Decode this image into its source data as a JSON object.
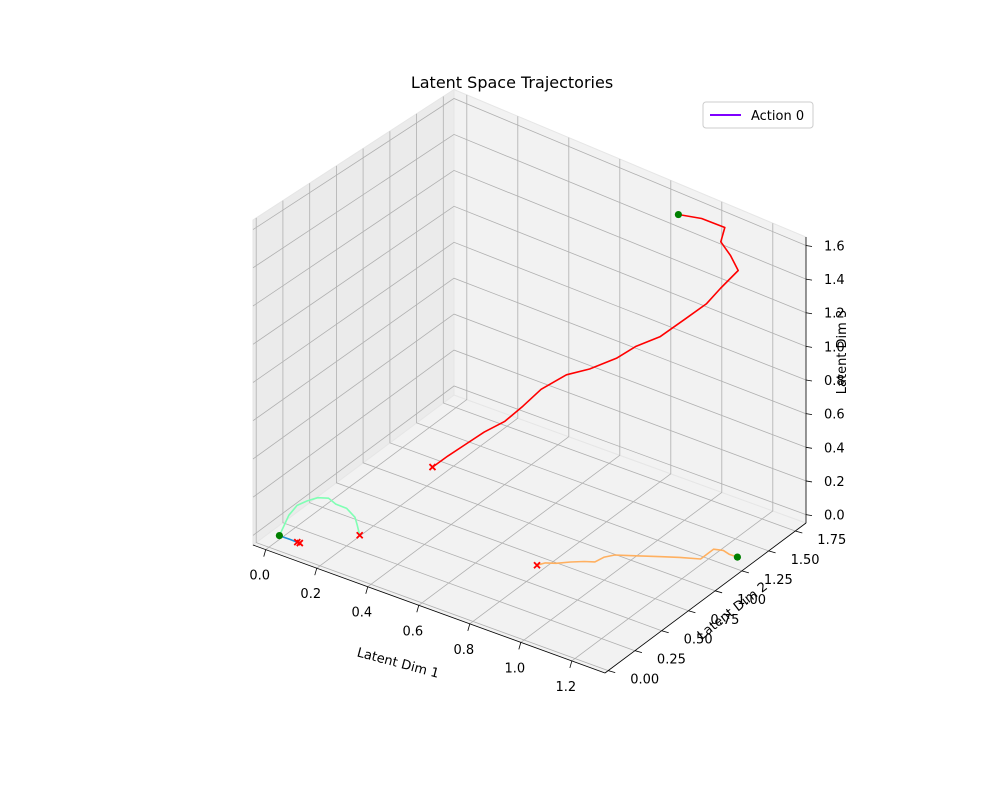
{
  "chart_data": {
    "type": "line",
    "projection": "3d",
    "title": "Latent Space Trajectories",
    "xlabel": "Latent Dim 1",
    "ylabel": "Latent Dim 2",
    "zlabel": "Latent Dim 3",
    "xlim": [
      -0.05,
      1.33
    ],
    "ylim": [
      -0.03,
      1.85
    ],
    "zlim": [
      -0.05,
      1.65
    ],
    "xticks": [
      "0.0",
      "0.2",
      "0.4",
      "0.6",
      "0.8",
      "1.0",
      "1.2"
    ],
    "yticks": [
      "0.00",
      "0.25",
      "0.50",
      "0.75",
      "1.00",
      "1.25",
      "1.50",
      "1.75"
    ],
    "zticks": [
      "0.0",
      "0.2",
      "0.4",
      "0.6",
      "0.8",
      "1.0",
      "1.2",
      "1.4",
      "1.6"
    ],
    "grid": true,
    "legend": {
      "placement": "top-right",
      "entries": [
        {
          "label": "Action 0",
          "color": "#7f00ff"
        }
      ]
    },
    "start_marker": {
      "shape": "circle",
      "color": "#008000"
    },
    "end_marker": {
      "shape": "x",
      "color": "#ff0000"
    },
    "series": [
      {
        "color": "#1f8fd8",
        "points": [
          [
            0.02,
            0.05,
            0.0
          ],
          [
            0.04,
            0.05,
            0.0
          ],
          [
            0.06,
            0.05,
            0.0
          ],
          [
            0.08,
            0.05,
            0.0
          ],
          [
            0.09,
            0.05,
            0.0
          ]
        ]
      },
      {
        "color": "#80ffb4",
        "points": [
          [
            0.02,
            0.05,
            0.0
          ],
          [
            0.03,
            0.07,
            0.05
          ],
          [
            0.04,
            0.09,
            0.1
          ],
          [
            0.06,
            0.12,
            0.15
          ],
          [
            0.09,
            0.14,
            0.18
          ],
          [
            0.12,
            0.17,
            0.2
          ],
          [
            0.15,
            0.2,
            0.2
          ],
          [
            0.17,
            0.22,
            0.17
          ],
          [
            0.2,
            0.25,
            0.15
          ],
          [
            0.22,
            0.28,
            0.1
          ],
          [
            0.22,
            0.3,
            0.05
          ],
          [
            0.23,
            0.3,
            0.0
          ]
        ]
      },
      {
        "color": "#ffb060",
        "points": [
          [
            1.3,
            1.28,
            0.0
          ],
          [
            1.28,
            1.25,
            0.02
          ],
          [
            1.27,
            1.22,
            0.05
          ],
          [
            1.24,
            1.2,
            0.05
          ],
          [
            1.21,
            1.15,
            0.0
          ],
          [
            1.15,
            1.1,
            0.0
          ],
          [
            1.1,
            1.05,
            0.0
          ],
          [
            1.05,
            1.0,
            0.0
          ],
          [
            1.0,
            0.95,
            0.0
          ],
          [
            0.97,
            0.92,
            0.0
          ],
          [
            0.95,
            0.87,
            0.0
          ],
          [
            0.93,
            0.83,
            -0.02
          ],
          [
            0.9,
            0.8,
            -0.02
          ],
          [
            0.86,
            0.77,
            -0.03
          ],
          [
            0.82,
            0.73,
            -0.04
          ],
          [
            0.79,
            0.7,
            -0.04
          ],
          [
            0.77,
            0.67,
            -0.05
          ]
        ]
      },
      {
        "color": "#ff0000",
        "points": [
          [
            0.88,
            1.73,
            1.55
          ],
          [
            0.95,
            1.78,
            1.55
          ],
          [
            1.02,
            1.83,
            1.52
          ],
          [
            1.0,
            1.84,
            1.42
          ],
          [
            1.03,
            1.86,
            1.35
          ],
          [
            1.06,
            1.86,
            1.28
          ],
          [
            1.0,
            1.84,
            1.15
          ],
          [
            0.96,
            1.8,
            1.05
          ],
          [
            0.9,
            1.75,
            0.95
          ],
          [
            0.82,
            1.7,
            0.82
          ],
          [
            0.75,
            1.64,
            0.75
          ],
          [
            0.7,
            1.58,
            0.68
          ],
          [
            0.62,
            1.52,
            0.6
          ],
          [
            0.55,
            1.47,
            0.55
          ],
          [
            0.48,
            1.4,
            0.46
          ],
          [
            0.43,
            1.35,
            0.36
          ],
          [
            0.38,
            1.3,
            0.27
          ],
          [
            0.32,
            1.25,
            0.2
          ],
          [
            0.27,
            1.2,
            0.13
          ],
          [
            0.22,
            1.15,
            0.06
          ],
          [
            0.18,
            1.1,
            0.0
          ]
        ]
      }
    ],
    "start_points": [
      [
        0.02,
        0.05,
        0.0
      ],
      [
        1.3,
        1.28,
        0.0
      ],
      [
        0.88,
        1.73,
        1.55
      ]
    ],
    "end_points": [
      [
        0.09,
        0.05,
        0.0
      ],
      [
        0.1,
        0.05,
        0.0
      ],
      [
        0.23,
        0.3,
        0.0
      ],
      [
        0.77,
        0.67,
        -0.05
      ],
      [
        0.18,
        1.1,
        0.0
      ]
    ]
  }
}
